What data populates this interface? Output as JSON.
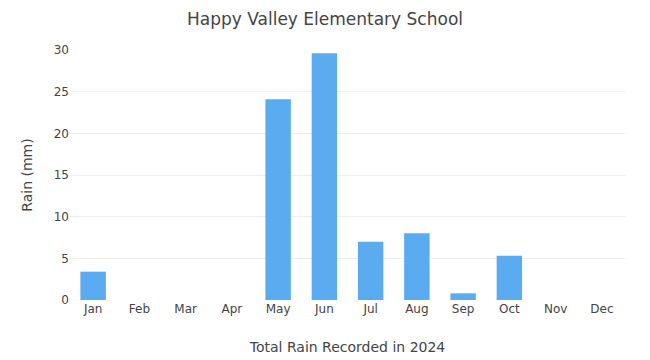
{
  "chart_data": {
    "type": "bar",
    "title": "Happy Valley Elementary School",
    "xlabel": "Total Rain Recorded in 2024",
    "ylabel": "Rain (mm)",
    "categories": [
      "Jan",
      "Feb",
      "Mar",
      "Apr",
      "May",
      "Jun",
      "Jul",
      "Aug",
      "Sep",
      "Oct",
      "Nov",
      "Dec"
    ],
    "values": [
      3.4,
      0,
      0,
      0,
      24.1,
      29.6,
      7.0,
      8.0,
      0.8,
      5.3,
      0,
      0
    ],
    "color": "#5aabf0",
    "ylim": [
      0,
      30
    ],
    "yticks": [
      0,
      5,
      10,
      15,
      20,
      25,
      30
    ],
    "grid": true
  }
}
